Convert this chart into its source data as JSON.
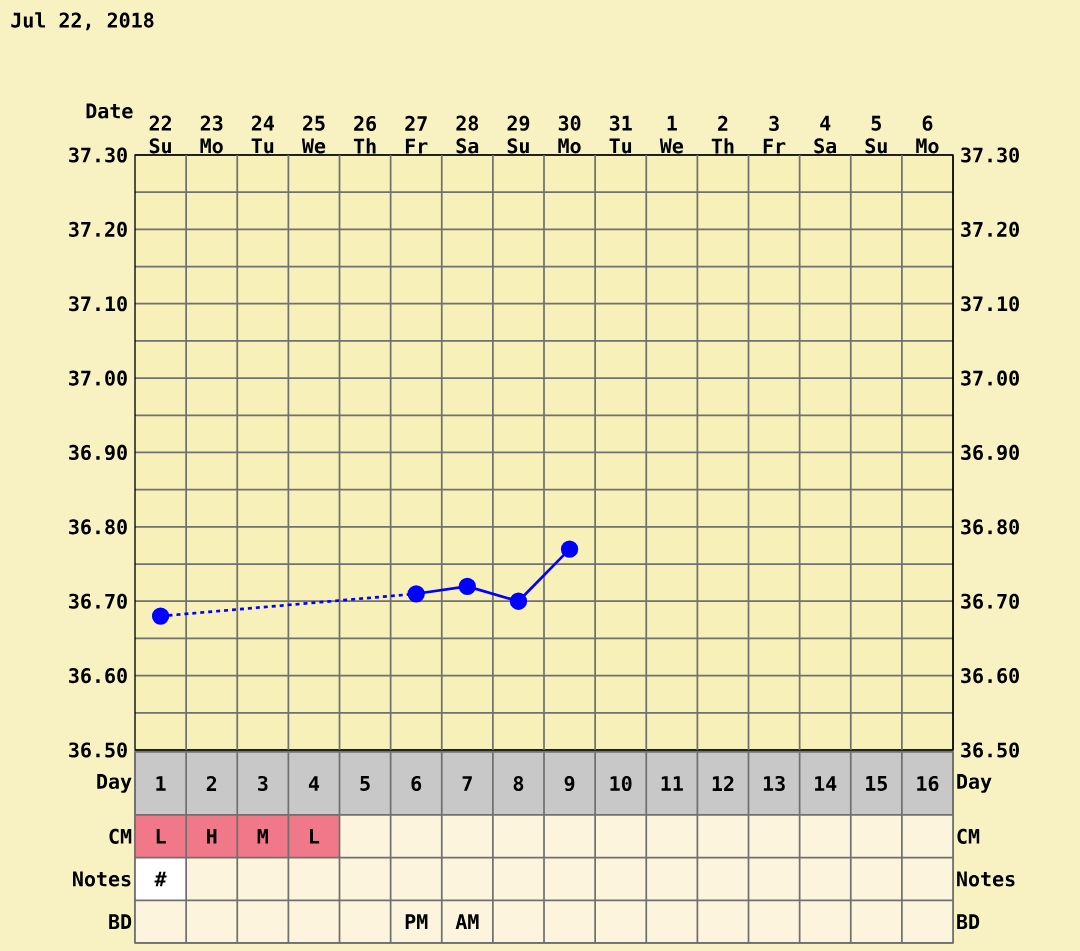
{
  "chart_data": [
    {
      "type": "line",
      "title": "Jul 22, 2018",
      "xlabel": "Date",
      "categories": [
        "22 Su",
        "23 Mo",
        "24 Tu",
        "25 We",
        "26 Th",
        "27 Fr",
        "28 Sa",
        "29 Su",
        "30 Mo",
        "31 Tu",
        "1 We",
        "2 Th",
        "3 Fr",
        "4 Sa",
        "5 Su",
        "6 Mo"
      ],
      "series": [
        {
          "color": "#0000ff",
          "values": [
            36.68,
            null,
            null,
            null,
            null,
            36.71,
            36.72,
            36.7,
            36.77,
            null,
            null,
            null,
            null,
            null,
            null,
            null
          ]
        }
      ],
      "ylim": [
        36.5,
        37.3
      ],
      "yticks": [
        {
          "value": 36.5,
          "label": "36.50"
        },
        {
          "value": 36.55,
          "label": null
        },
        {
          "value": 36.6,
          "label": "36.60"
        },
        {
          "value": 36.65,
          "label": null
        },
        {
          "value": 36.7,
          "label": "36.70"
        },
        {
          "value": 36.75,
          "label": null
        },
        {
          "value": 36.8,
          "label": "36.80"
        },
        {
          "value": 36.85,
          "label": null
        },
        {
          "value": 36.9,
          "label": "36.90"
        },
        {
          "value": 36.95,
          "label": null
        },
        {
          "value": 37.0,
          "label": "37.00"
        },
        {
          "value": 37.05,
          "label": null
        },
        {
          "value": 37.1,
          "label": "37.10"
        },
        {
          "value": 37.15,
          "label": null
        },
        {
          "value": 37.2,
          "label": "37.20"
        },
        {
          "value": 37.25,
          "label": null
        },
        {
          "value": 37.3,
          "label": "37.30"
        }
      ],
      "y2lim": [
        36.5,
        37.3
      ],
      "y2ticks": [
        {
          "value": 36.5,
          "label": "36.50"
        },
        {
          "value": 36.6,
          "label": "36.60"
        },
        {
          "value": 36.7,
          "label": "36.70"
        },
        {
          "value": 36.8,
          "label": "36.80"
        },
        {
          "value": 36.9,
          "label": "36.90"
        },
        {
          "value": 37.0,
          "label": "37.00"
        },
        {
          "value": 37.1,
          "label": "37.10"
        },
        {
          "value": 37.2,
          "label": "37.20"
        },
        {
          "value": 37.3,
          "label": "37.30"
        }
      ],
      "grid": true,
      "marker": "circle",
      "line_style": "solid"
    },
    {
      "type": "heatmap",
      "xlabel": "Day",
      "categories": [
        "1",
        "2",
        "3",
        "4",
        "5",
        "6",
        "7",
        "8",
        "9",
        "10",
        "11",
        "12",
        "13",
        "14",
        "15",
        "16"
      ],
      "y_categories": [
        "CM",
        "Notes",
        "BD"
      ],
      "y2_categories": [
        "CM",
        "Notes",
        "BD"
      ],
      "cells": [
        [
          null,
          null,
          null,
          null,
          null,
          null,
          null,
          null,
          null,
          null,
          null,
          null,
          null,
          null,
          null,
          null
        ],
        [
          null,
          null,
          null,
          null,
          null,
          null,
          null,
          null,
          null,
          null,
          null,
          null,
          null,
          null,
          null,
          null
        ],
        [
          null,
          null,
          null,
          null,
          null,
          null,
          null,
          null,
          null,
          null,
          null,
          null,
          null,
          null,
          null,
          null
        ]
      ],
      "cell_labels": [
        [
          "L",
          "H",
          "M",
          "L",
          null,
          null,
          null,
          null,
          null,
          null,
          null,
          null,
          null,
          null,
          null,
          null
        ],
        [
          "#",
          null,
          null,
          null,
          null,
          null,
          null,
          null,
          null,
          null,
          null,
          null,
          null,
          null,
          null,
          null
        ],
        [
          null,
          null,
          null,
          null,
          null,
          "PM",
          "AM",
          null,
          null,
          null,
          null,
          null,
          null,
          null,
          null,
          null
        ]
      ]
    }
  ]
}
